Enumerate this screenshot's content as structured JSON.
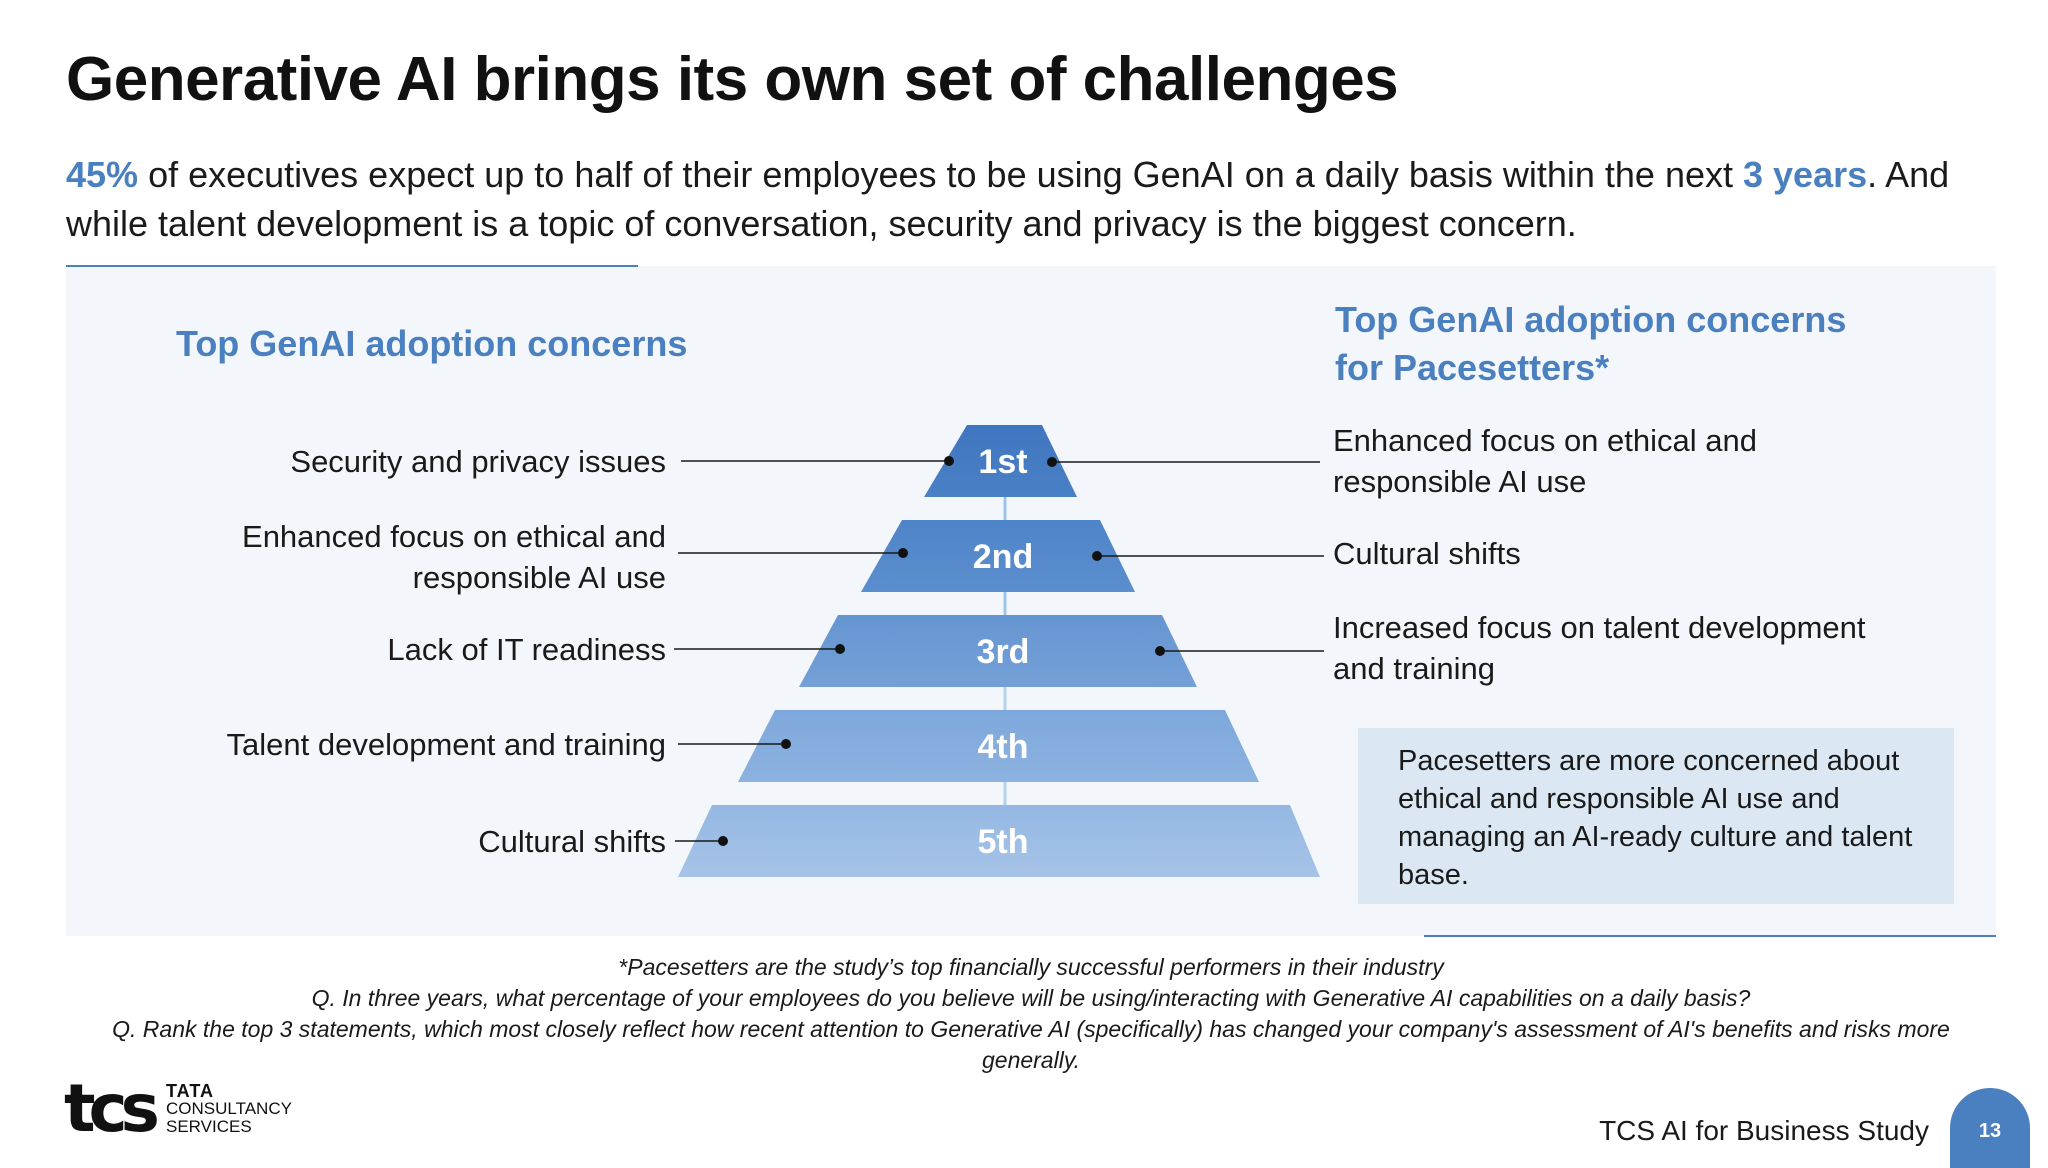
{
  "title": "Generative AI brings its own set of challenges",
  "subtitle": {
    "highlight1": "45%",
    "text1": " of executives expect up to half of their employees to be using GenAI on a daily basis within the next ",
    "highlight2": "3 years",
    "text2": ". And while talent development is a topic of conversation, security and privacy is the biggest concern."
  },
  "left_heading": "Top GenAI adoption concerns",
  "right_heading": "Top GenAI adoption concerns for Pacesetters*",
  "pyramid": [
    "1st",
    "2nd",
    "3rd",
    "4th",
    "5th"
  ],
  "left_items": [
    "Security and privacy issues",
    "Enhanced focus on ethical and responsible AI use",
    "Lack of IT readiness",
    "Talent development and training",
    "Cultural shifts"
  ],
  "right_items": [
    "Enhanced focus on ethical and responsible AI use",
    "Cultural shifts",
    "Increased focus on talent development and training"
  ],
  "callout": "Pacesetters are more concerned about ethical and responsible AI use and managing an AI-ready culture and talent base.",
  "footnotes": [
    "*Pacesetters are the study’s top financially successful performers in their industry",
    "Q. In three years, what percentage of your employees do you believe will be using/interacting with Generative AI capabilities on a daily basis?",
    "Q. Rank the top 3 statements, which most closely reflect how recent attention to Generative AI (specifically) has changed your company's assessment of AI's benefits and risks more generally."
  ],
  "brand": {
    "line1": "TATA",
    "line2": "CONSULTANCY",
    "line3": "SERVICES",
    "mark": "tcs"
  },
  "study_name": "TCS AI for Business Study",
  "page_number": "13",
  "colors": {
    "accent": "#4a7fc0",
    "panel_bg": "#f3f6fa",
    "callout_bg": "#dbe8f3",
    "tier_top": "#3f76bf",
    "tier_bottom": "#a3c1e5"
  }
}
